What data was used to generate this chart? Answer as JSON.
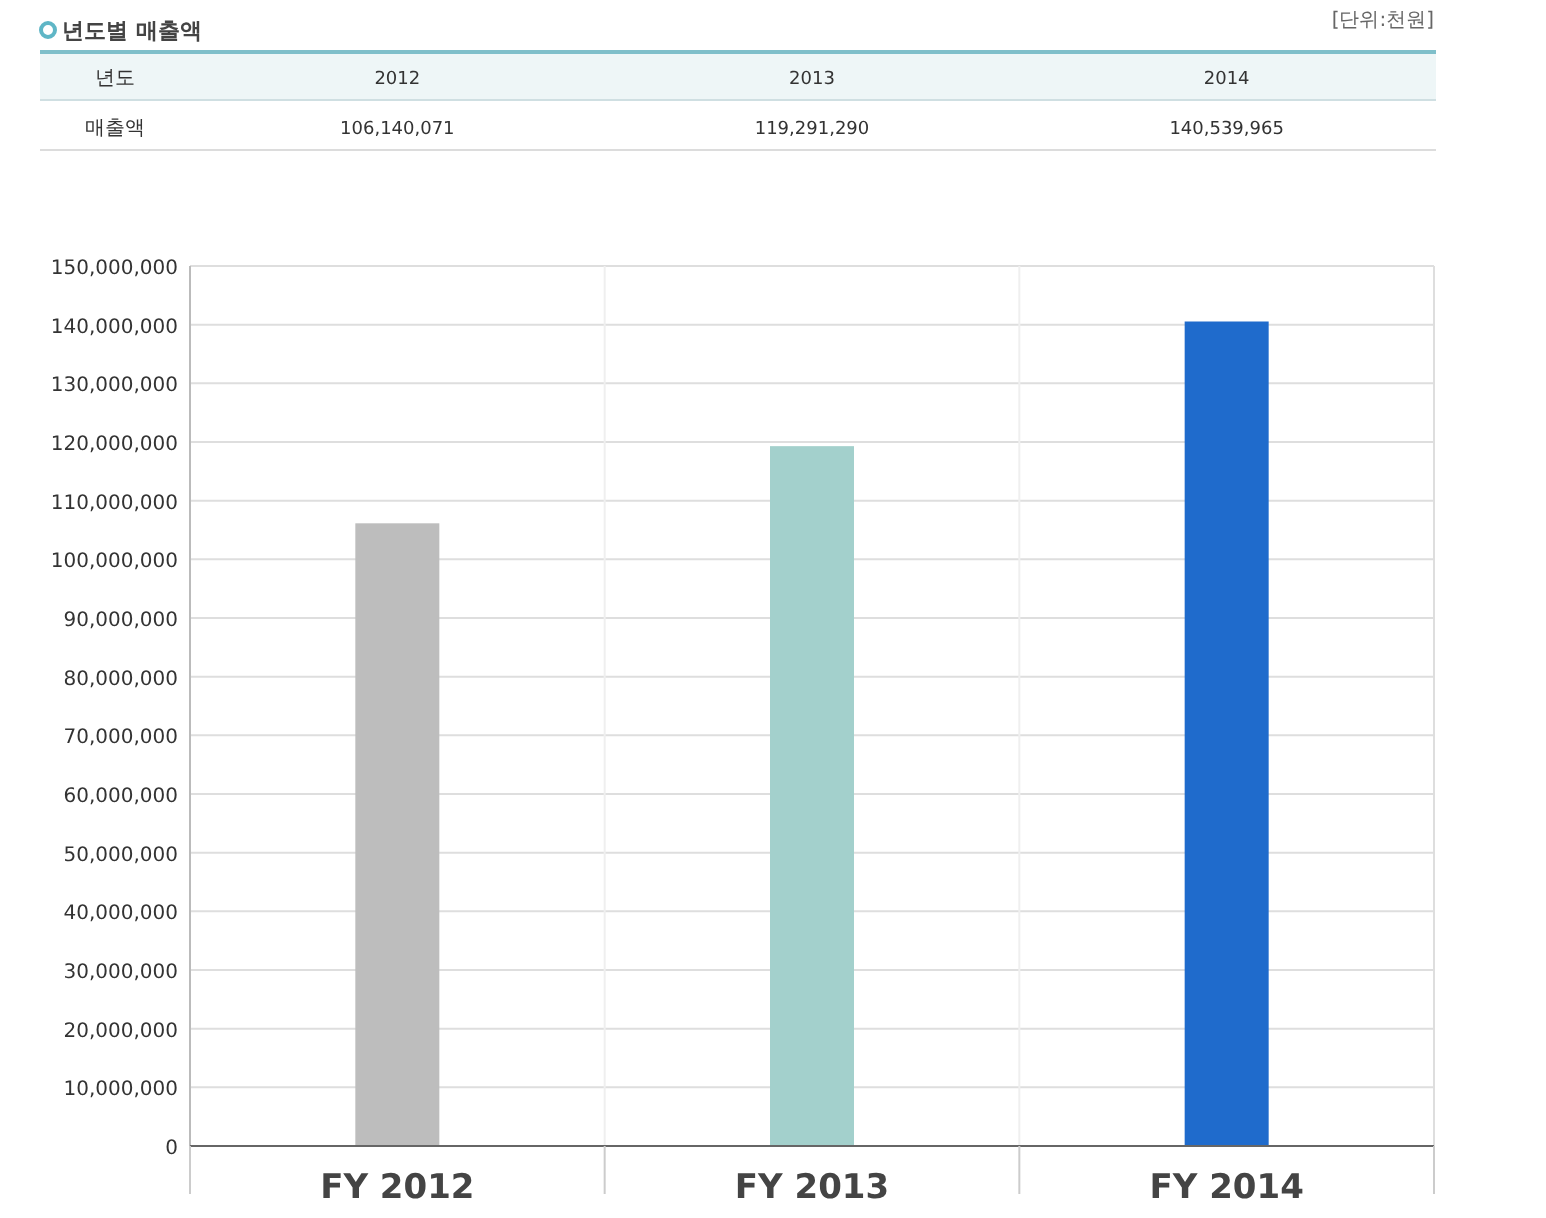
{
  "chart_data": {
    "type": "bar",
    "title": "년도별 매출액",
    "annotations": [
      "[단위:천원]",
      "년도",
      "매출액",
      "2012",
      "2013",
      "2014"
    ],
    "categories": [
      "FY 2012",
      "FY 2013",
      "FY 2014"
    ],
    "values": [
      106140071,
      119291290,
      140539965
    ],
    "colors": [
      "#bdbdbd",
      "#a3d0cc",
      "#1f6bcc"
    ],
    "value_labels": [
      "106,140,071",
      "119,291,290",
      "140,539,965"
    ],
    "ylim": [
      0,
      150000000
    ],
    "yticks": [
      0,
      {
        "value": 10000000,
        "label": "10,000,000"
      },
      {
        "value": 20000000,
        "label": "20,000,000"
      },
      {
        "value": 30000000,
        "label": "30,000,000"
      },
      {
        "value": 40000000,
        "label": "40,000,000"
      },
      {
        "value": 50000000,
        "label": "50,000,000"
      },
      {
        "value": 60000000,
        "label": "60,000,000"
      },
      {
        "value": 70000000,
        "label": "70,000,000"
      },
      {
        "value": 80000000,
        "label": "80,000,000"
      },
      {
        "value": 90000000,
        "label": "90,000,000"
      },
      {
        "value": 100000000,
        "label": "100,000,000"
      },
      {
        "value": 110000000,
        "label": "110,000,000"
      },
      {
        "value": 120000000,
        "label": "120,000,000"
      },
      {
        "value": 130000000,
        "label": "130,000,000"
      },
      {
        "value": 140000000,
        "label": "140,000,000"
      },
      {
        "value": 150000000,
        "label": "150,000,000"
      }
    ],
    "grid": true
  }
}
